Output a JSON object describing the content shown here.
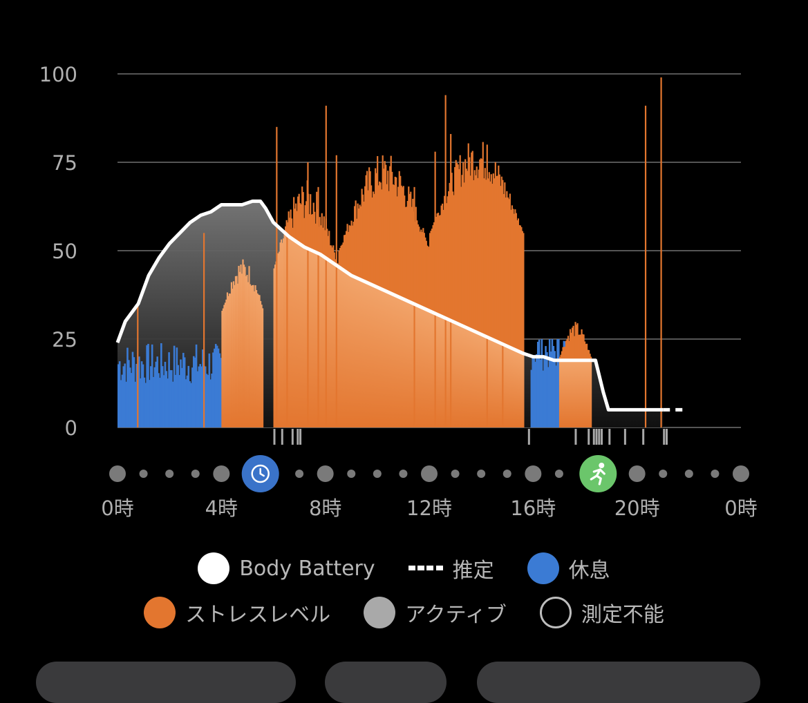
{
  "chart_data": {
    "type": "bar",
    "xlabel": "",
    "ylabel": "",
    "ylim": [
      0,
      100
    ],
    "y_ticks": [
      "100",
      "75",
      "50",
      "25",
      "0"
    ],
    "x_ticks": [
      "0時",
      "4時",
      "8時",
      "12時",
      "16時",
      "20時",
      "0時"
    ],
    "grid": true,
    "body_battery": {
      "name": "Body Battery",
      "hours": [
        0,
        0.3,
        0.8,
        1.2,
        1.6,
        2.0,
        2.4,
        2.8,
        3.2,
        3.6,
        4.0,
        4.4,
        4.8,
        5.2,
        5.5,
        5.7,
        6.0,
        6.6,
        7.2,
        7.8,
        8.4,
        9.0,
        9.6,
        10.2,
        10.8,
        11.4,
        12.0,
        12.6,
        13.2,
        13.8,
        14.4,
        15.0,
        15.6,
        16.0,
        16.4,
        16.8,
        17.2,
        17.6,
        18.0,
        18.4,
        18.7,
        18.9,
        19.6,
        20.4,
        21.0
      ],
      "values": [
        24,
        30,
        35,
        43,
        48,
        52,
        55,
        58,
        60,
        61,
        63,
        63,
        63,
        64,
        64,
        62,
        58,
        54,
        51,
        49,
        46,
        43,
        41,
        39,
        37,
        35,
        33,
        31,
        29,
        27,
        25,
        23,
        21,
        20,
        20,
        19,
        19,
        19,
        19,
        19,
        10,
        5,
        5,
        5,
        5
      ]
    },
    "estimate": {
      "name": "推定",
      "hours": [
        21.0,
        21.8
      ],
      "values": [
        5,
        5
      ]
    },
    "stress_segments": [
      {
        "start": 4.0,
        "end": 5.6,
        "base": 33,
        "peak": 48
      },
      {
        "start": 6.0,
        "end": 8.5,
        "base": 45,
        "peak": 70
      },
      {
        "start": 8.5,
        "end": 12.0,
        "base": 50,
        "peak": 78
      },
      {
        "start": 12.0,
        "end": 15.6,
        "base": 55,
        "peak": 82
      },
      {
        "start": 17.0,
        "end": 18.2,
        "base": 20,
        "peak": 30
      }
    ],
    "stress_spikes": [
      {
        "hour": 0.75,
        "value": 35
      },
      {
        "hour": 3.3,
        "value": 55
      },
      {
        "hour": 6.1,
        "value": 85
      },
      {
        "hour": 6.5,
        "value": 58
      },
      {
        "hour": 7.3,
        "value": 75
      },
      {
        "hour": 7.7,
        "value": 68
      },
      {
        "hour": 8.0,
        "value": 91
      },
      {
        "hour": 8.4,
        "value": 77
      },
      {
        "hour": 11.4,
        "value": 68
      },
      {
        "hour": 12.2,
        "value": 78
      },
      {
        "hour": 12.6,
        "value": 94
      },
      {
        "hour": 12.8,
        "value": 83
      },
      {
        "hour": 14.2,
        "value": 80
      },
      {
        "hour": 14.8,
        "value": 70
      },
      {
        "hour": 20.3,
        "value": 91
      },
      {
        "hour": 20.9,
        "value": 99
      }
    ],
    "rest_segments": [
      {
        "start": 0.0,
        "end": 4.0,
        "level": 18
      },
      {
        "start": 15.9,
        "end": 18.0,
        "level": 22
      }
    ],
    "active_marks": [
      6.0,
      6.3,
      6.7,
      6.9,
      7.0,
      15.8,
      17.6,
      18.1,
      18.3,
      18.4,
      18.5,
      18.6,
      18.9,
      19.5,
      20.2,
      21.0,
      21.1
    ]
  },
  "timeline": {
    "dot_count": 25,
    "dot_hours_major": [
      0,
      4,
      8,
      12,
      16,
      20,
      24
    ],
    "events": [
      {
        "hour": 5.5,
        "icon": "clock-icon",
        "color": "#3a73c9"
      },
      {
        "hour": 18.5,
        "icon": "running-icon",
        "color": "#6bc66b"
      }
    ]
  },
  "colors": {
    "battery": "#ffffff",
    "stress": "#e3762f",
    "rest": "#3b7bd4",
    "active": "#a9a9a9",
    "unmeasured": "#000000",
    "grid": "#555555"
  },
  "legend": [
    [
      {
        "key": "battery",
        "label": "Body Battery",
        "swatch": "circle",
        "color": "#ffffff"
      },
      {
        "key": "estimate",
        "label": "推定",
        "swatch": "dash",
        "color": "#ffffff"
      },
      {
        "key": "rest",
        "label": "休息",
        "swatch": "circle",
        "color": "#3b7bd4"
      }
    ],
    [
      {
        "key": "stress",
        "label": "ストレスレベル",
        "swatch": "circle",
        "color": "#e3762f"
      },
      {
        "key": "active",
        "label": "アクティブ",
        "swatch": "circle",
        "color": "#a9a9a9"
      },
      {
        "key": "unmeasured",
        "label": "測定不能",
        "swatch": "ring",
        "color": "#000000"
      }
    ]
  ]
}
